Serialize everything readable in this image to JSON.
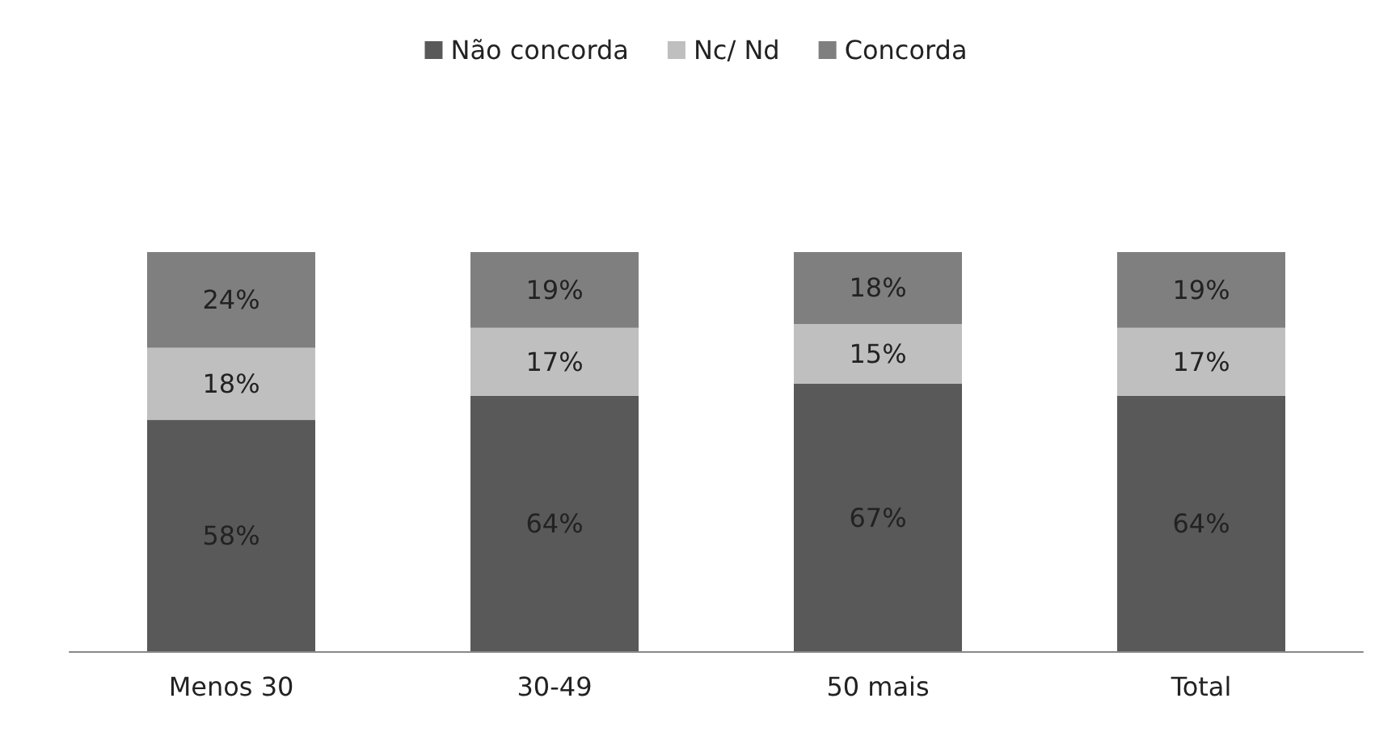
{
  "chart_data": {
    "type": "bar",
    "stacked": true,
    "legend": "top",
    "categories": [
      "Menos 30",
      "30-49",
      "50 mais",
      "Total"
    ],
    "series": [
      {
        "name": "Não concorda",
        "color": "#595959",
        "values": [
          58,
          64,
          67,
          64
        ],
        "value_labels": [
          "58%",
          "64%",
          "67%",
          "64%"
        ]
      },
      {
        "name": "Nc/ Nd",
        "color": "#bfbfbf",
        "values": [
          18,
          17,
          15,
          17
        ],
        "value_labels": [
          "18%",
          "17%",
          "15%",
          "17%"
        ]
      },
      {
        "name": "Concorda",
        "color": "#7f7f7f",
        "values": [
          24,
          19,
          18,
          19
        ],
        "value_labels": [
          "24%",
          "19%",
          "18%",
          "19%"
        ]
      }
    ]
  }
}
